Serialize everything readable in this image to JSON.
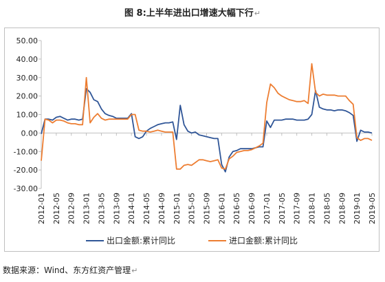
{
  "page": {
    "title": "图 8:上半年进出口增速大幅下行",
    "source": "数据来源：Wind、东方红资产管理"
  },
  "colors": {
    "export": "#2F5597",
    "import": "#ED7D31",
    "axis": "#bfbfbf",
    "text": "#222222"
  },
  "chart_data": {
    "type": "line",
    "title": "图 8:上半年进出口增速大幅下行",
    "xlabel": "",
    "ylabel": "",
    "ylim": [
      -30,
      50
    ],
    "yticks": [
      -30,
      -20,
      -10,
      0,
      10,
      20,
      30,
      40,
      50
    ],
    "ytick_labels": [
      "-30.00",
      "-20.00",
      "-10.00",
      "0.00",
      "10.00",
      "20.00",
      "30.00",
      "40.00",
      "50.00"
    ],
    "grid": false,
    "legend_position": "bottom",
    "x": [
      "2012-01",
      "2012-02",
      "2012-03",
      "2012-04",
      "2012-05",
      "2012-06",
      "2012-07",
      "2012-08",
      "2012-09",
      "2012-10",
      "2012-11",
      "2012-12",
      "2013-01",
      "2013-02",
      "2013-03",
      "2013-04",
      "2013-05",
      "2013-06",
      "2013-07",
      "2013-08",
      "2013-09",
      "2013-10",
      "2013-11",
      "2013-12",
      "2014-01",
      "2014-02",
      "2014-03",
      "2014-04",
      "2014-05",
      "2014-06",
      "2014-07",
      "2014-08",
      "2014-09",
      "2014-10",
      "2014-11",
      "2014-12",
      "2015-01",
      "2015-02",
      "2015-03",
      "2015-04",
      "2015-05",
      "2015-06",
      "2015-07",
      "2015-08",
      "2015-09",
      "2015-10",
      "2015-11",
      "2015-12",
      "2016-01",
      "2016-02",
      "2016-03",
      "2016-04",
      "2016-05",
      "2016-06",
      "2016-07",
      "2016-08",
      "2016-09",
      "2016-10",
      "2016-11",
      "2016-12",
      "2017-01",
      "2017-02",
      "2017-03",
      "2017-04",
      "2017-05",
      "2017-06",
      "2017-07",
      "2017-08",
      "2017-09",
      "2017-10",
      "2017-11",
      "2017-12",
      "2018-01",
      "2018-02",
      "2018-03",
      "2018-04",
      "2018-05",
      "2018-06",
      "2018-07",
      "2018-08",
      "2018-09",
      "2018-10",
      "2018-11",
      "2018-12",
      "2019-01",
      "2019-02",
      "2019-03",
      "2019-04",
      "2019-05"
    ],
    "xtick_labels": [
      "2012-01",
      "2012-05",
      "2012-09",
      "2013-01",
      "2013-05",
      "2013-09",
      "2014-01",
      "2014-05",
      "2014-09",
      "2015-01",
      "2015-05",
      "2015-09",
      "2016-01",
      "2016-05",
      "2016-09",
      "2017-01",
      "2017-05",
      "2017-09",
      "2018-01",
      "2018-05",
      "2018-09",
      "2019-01",
      "2019-05"
    ],
    "series": [
      {
        "name": "出口金额:累计同比",
        "values": [
          -0.5,
          7.5,
          7.5,
          7,
          8.5,
          9,
          8,
          7,
          7.5,
          7.5,
          7,
          7.5,
          24,
          22,
          18,
          17,
          13,
          10.5,
          9.5,
          9,
          8,
          8,
          8,
          8,
          10.5,
          -2,
          -3,
          -2,
          1,
          2.5,
          3.5,
          4.5,
          5,
          5.5,
          5.5,
          6,
          -3.5,
          15,
          4.5,
          1,
          0,
          0.5,
          -1,
          -1.5,
          -2,
          -2.5,
          -3,
          -3,
          -17,
          -21,
          -13,
          -10,
          -9.5,
          -8.5,
          -8.5,
          -8.5,
          -8.5,
          -8,
          -7.5,
          -7.5,
          6.5,
          3,
          7,
          7,
          7,
          7.5,
          7.5,
          7.5,
          7,
          7,
          7,
          7.5,
          10,
          23,
          14,
          13,
          12.5,
          12.5,
          12,
          12.5,
          12.5,
          12,
          11,
          9.5,
          -4.5,
          1.5,
          0.5,
          0.5,
          0
        ]
      },
      {
        "name": "进口金额:累计同比",
        "values": [
          -15,
          7.5,
          7,
          5.5,
          7,
          7,
          6.5,
          5.5,
          5,
          5,
          4.5,
          4.5,
          30,
          5.5,
          8.5,
          10.5,
          8,
          7,
          7.5,
          7.5,
          7.5,
          7.5,
          7.5,
          7.5,
          10,
          10,
          1.5,
          1,
          1,
          0.5,
          1,
          1.5,
          1,
          0.5,
          0.5,
          0.5,
          -19.5,
          -19.5,
          -17.5,
          -17,
          -17.5,
          -16,
          -14.5,
          -14.5,
          -15,
          -15.5,
          -15,
          -14.5,
          -19,
          -19.5,
          -14,
          -12.5,
          -10.5,
          -10,
          -9.5,
          -9.5,
          -9,
          -8,
          -7,
          -5.5,
          16.5,
          26.5,
          24.5,
          21.5,
          20,
          19,
          18,
          17.5,
          17,
          17,
          17.5,
          16,
          37.5,
          22,
          20,
          21,
          20.5,
          20.5,
          20.5,
          20,
          20,
          20,
          17.5,
          15.5,
          -2.5,
          -4,
          -3,
          -3,
          -4
        ]
      }
    ]
  }
}
